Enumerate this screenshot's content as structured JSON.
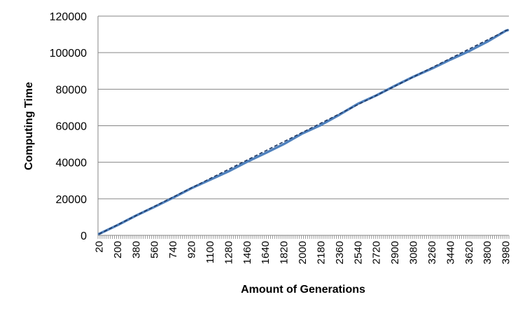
{
  "chart_data": {
    "type": "line",
    "title": "",
    "xlabel": "Amount of Generations",
    "ylabel": "Computing Time",
    "ylim": [
      0,
      120000
    ],
    "y_ticks": [
      "0",
      "20000",
      "40000",
      "60000",
      "80000",
      "100000",
      "120000"
    ],
    "x_range": [
      20,
      4000
    ],
    "x_step": 20,
    "x_tick_labels": [
      "20",
      "200",
      "380",
      "560",
      "740",
      "920",
      "1100",
      "1280",
      "1460",
      "1640",
      "1820",
      "2000",
      "2180",
      "2360",
      "2540",
      "2720",
      "2900",
      "3080",
      "3260",
      "3440",
      "3620",
      "3800",
      "3980"
    ],
    "grid": "horizontal",
    "legend": "none",
    "series": [
      {
        "x": [
          20,
          200,
          380,
          560,
          740,
          920,
          1100,
          1280,
          1460,
          1640,
          1820,
          2000,
          2180,
          2360,
          2540,
          2720,
          2900,
          3080,
          3260,
          3440,
          3620,
          3800,
          3980,
          4000
        ],
        "values": [
          800,
          5600,
          10800,
          15600,
          20600,
          25800,
          30400,
          35000,
          40200,
          45000,
          50000,
          55800,
          60400,
          66000,
          72000,
          76600,
          81800,
          86800,
          91300,
          96200,
          100800,
          106000,
          112000,
          112300
        ],
        "color": "#4f81bd"
      }
    ],
    "trendline": {
      "x": [
        20,
        4000
      ],
      "values": [
        700,
        112600
      ],
      "color": "#1f3864",
      "style": "dashed"
    }
  }
}
